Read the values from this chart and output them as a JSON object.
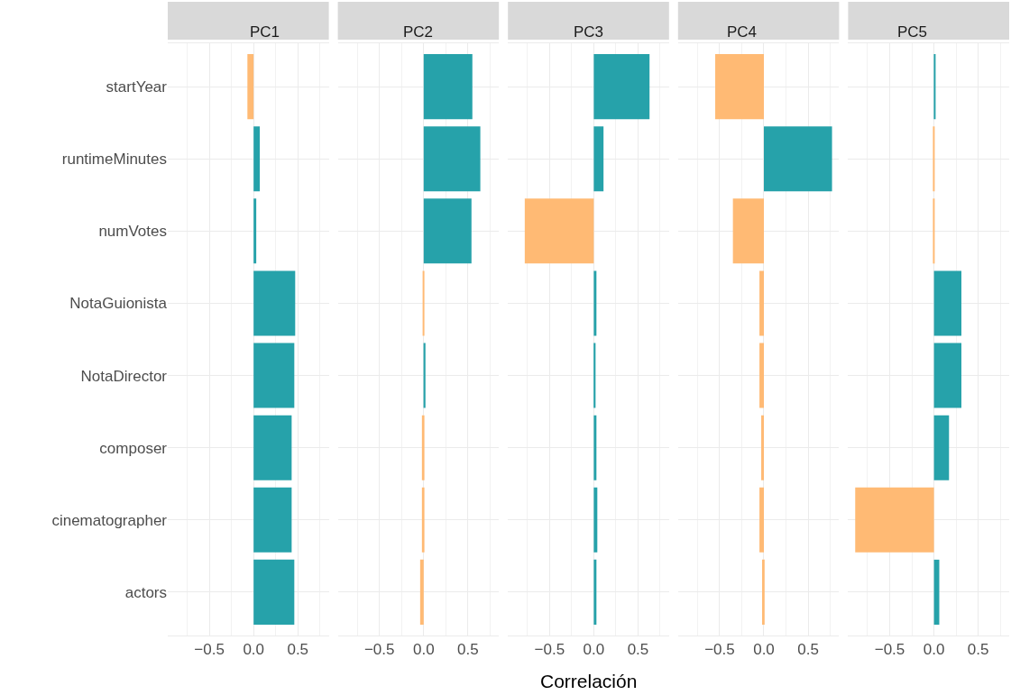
{
  "chart_data": [
    {
      "type": "bar",
      "orientation": "horizontal",
      "title": "PC1",
      "categories": [
        "startYear",
        "runtimeMinutes",
        "numVotes",
        "NotaGuionista",
        "NotaDirector",
        "composer",
        "cinematographer",
        "actors"
      ],
      "values": [
        -0.07,
        0.07,
        0.03,
        0.47,
        0.46,
        0.43,
        0.43,
        0.46
      ],
      "tick_labels": true,
      "colors": [
        "#ffba74",
        "#26a2aa",
        "#26a2aa",
        "#26a2aa",
        "#26a2aa",
        "#26a2aa",
        "#26a2aa",
        "#26a2aa"
      ],
      "xlim": [
        -0.97,
        0.85
      ],
      "xticks": [
        {
          "value": -0.5,
          "label": "−0.5"
        },
        {
          "value": 0,
          "label": "0.0"
        },
        {
          "value": 0.5,
          "label": "0.5"
        }
      ],
      "grid": true
    },
    {
      "type": "bar",
      "orientation": "horizontal",
      "title": "PC2",
      "categories": [
        "startYear",
        "runtimeMinutes",
        "numVotes",
        "NotaGuionista",
        "NotaDirector",
        "composer",
        "cinematographer",
        "actors"
      ],
      "values": [
        0.55,
        0.64,
        0.54,
        -0.01,
        0.02,
        -0.02,
        -0.02,
        -0.04
      ],
      "colors": [
        "#26a2aa",
        "#26a2aa",
        "#26a2aa",
        "#ffba74",
        "#26a2aa",
        "#ffba74",
        "#ffba74",
        "#ffba74"
      ],
      "xlim": [
        -0.97,
        0.85
      ],
      "xticks": [
        {
          "value": -0.5,
          "label": "−0.5"
        },
        {
          "value": 0,
          "label": "0.0"
        },
        {
          "value": 0.5,
          "label": "0.5"
        }
      ],
      "grid": true,
      "tick_labels": "x"
    },
    {
      "type": "bar",
      "orientation": "horizontal",
      "title": "PC3",
      "xlabel": "Correlación",
      "categories": [
        "startYear",
        "runtimeMinutes",
        "numVotes",
        "NotaGuionista",
        "NotaDirector",
        "composer",
        "cinematographer",
        "actors"
      ],
      "values": [
        0.63,
        0.11,
        -0.78,
        0.03,
        0.02,
        0.03,
        0.04,
        0.03
      ],
      "colors": [
        "#26a2aa",
        "#26a2aa",
        "#ffba74",
        "#26a2aa",
        "#26a2aa",
        "#26a2aa",
        "#26a2aa",
        "#26a2aa"
      ],
      "xlim": [
        -0.97,
        0.85
      ],
      "xticks": [
        {
          "value": -0.5,
          "label": "−0.5"
        },
        {
          "value": 0,
          "label": "0.0"
        },
        {
          "value": 0.5,
          "label": "0.5"
        }
      ],
      "grid": true,
      "tick_labels": "x"
    },
    {
      "type": "bar",
      "orientation": "horizontal",
      "title": "PC4",
      "categories": [
        "startYear",
        "runtimeMinutes",
        "numVotes",
        "NotaGuionista",
        "NotaDirector",
        "composer",
        "cinematographer",
        "actors"
      ],
      "values": [
        -0.55,
        0.77,
        -0.35,
        -0.05,
        -0.05,
        -0.03,
        -0.05,
        -0.02
      ],
      "colors": [
        "#ffba74",
        "#26a2aa",
        "#ffba74",
        "#ffba74",
        "#ffba74",
        "#ffba74",
        "#ffba74",
        "#ffba74"
      ],
      "xlim": [
        -0.97,
        0.85
      ],
      "xticks": [
        {
          "value": -0.5,
          "label": "−0.5"
        },
        {
          "value": 0,
          "label": "0.0"
        },
        {
          "value": 0.5,
          "label": "0.5"
        }
      ],
      "grid": true,
      "tick_labels": "x"
    },
    {
      "type": "bar",
      "orientation": "horizontal",
      "title": "PC5",
      "categories": [
        "startYear",
        "runtimeMinutes",
        "numVotes",
        "NotaGuionista",
        "NotaDirector",
        "composer",
        "cinematographer",
        "actors"
      ],
      "values": [
        0.01,
        -0.01,
        -0.01,
        0.31,
        0.31,
        0.17,
        -0.89,
        0.06
      ],
      "colors": [
        "#26a2aa",
        "#ffba74",
        "#ffba74",
        "#26a2aa",
        "#26a2aa",
        "#26a2aa",
        "#ffba74",
        "#26a2aa"
      ],
      "xlim": [
        -0.97,
        0.85
      ],
      "xticks": [
        {
          "value": -0.5,
          "label": "−0.5"
        },
        {
          "value": 0,
          "label": "0.0"
        },
        {
          "value": 0.5,
          "label": "0.5"
        }
      ],
      "grid": true,
      "tick_labels": "x"
    }
  ]
}
